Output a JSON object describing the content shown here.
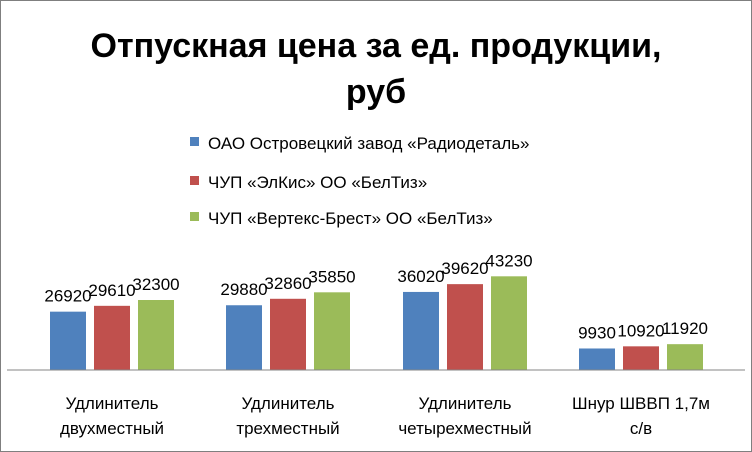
{
  "chart_data": {
    "type": "bar",
    "title_lines": [
      "Отпускная цена за ед. продукции,",
      "руб"
    ],
    "categories": [
      [
        "Удлинитель",
        "двухместный"
      ],
      [
        "Удлинитель",
        "трехместный"
      ],
      [
        "Удлинитель",
        "четырехместный"
      ],
      [
        "Шнур ШВВП 1,7м",
        "с/в"
      ]
    ],
    "series": [
      {
        "name": "ОАО Островецкий завод «Радиодеталь»",
        "color": "#4f81bd",
        "values": [
          26920,
          29880,
          36020,
          9930
        ]
      },
      {
        "name": "ЧУП «ЭлКис» ОО «БелТиз»",
        "color": "#c0504d",
        "values": [
          29610,
          32860,
          39620,
          10920
        ]
      },
      {
        "name": "ЧУП «Вертекс-Брест» ОО «БелТиз»",
        "color": "#9bbb59",
        "values": [
          32300,
          35850,
          43230,
          11920
        ]
      }
    ],
    "ylim": [
      0,
      100000
    ],
    "legend_position": "top",
    "grid": false,
    "data_labels": true
  }
}
